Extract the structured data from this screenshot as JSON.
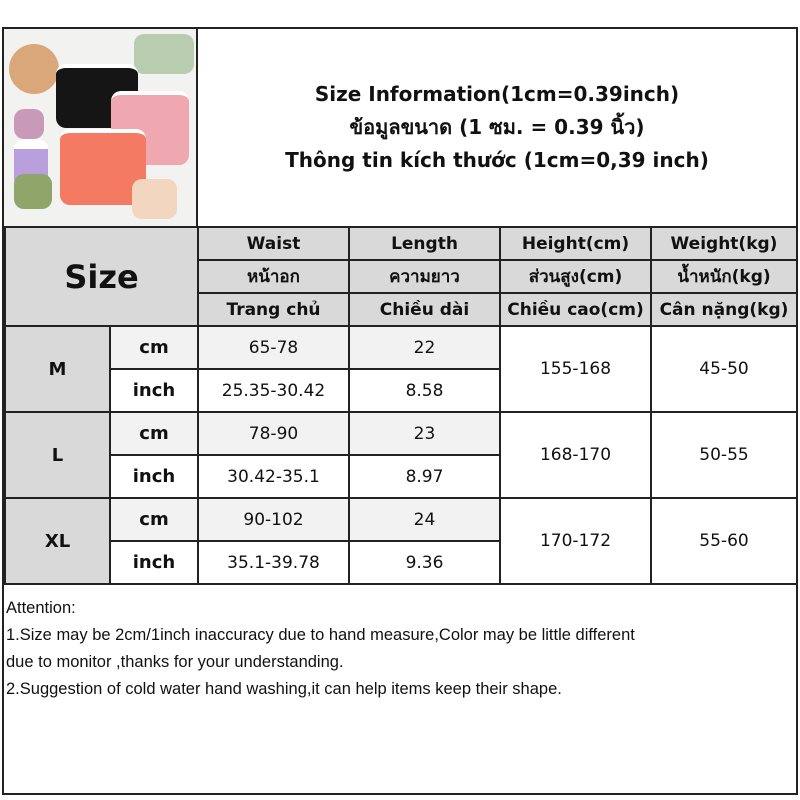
{
  "title": {
    "line1": "Size Information(1cm=0.39inch)",
    "line2": "ข้อมูลขนาด (1 ซม. = 0.39 นิ้ว)",
    "line3": "Thông tin kích thước (1cm=0,39 inch)"
  },
  "header": {
    "size": "Size",
    "columns": [
      {
        "en": "Waist",
        "th": "หน้าอก",
        "vi": "Trang chủ"
      },
      {
        "en": "Length",
        "th": "ความยาว",
        "vi": "Chiều dài"
      },
      {
        "en": "Height(cm)",
        "th": "ส่วนสูง(cm)",
        "vi": "Chiều cao(cm)"
      },
      {
        "en": "Weight(kg)",
        "th": "น้ำหนัก(kg)",
        "vi": "Cân nặng(kg)"
      }
    ]
  },
  "rows": [
    {
      "size": "M",
      "cm": {
        "unit": "cm",
        "waist": "65-78",
        "length": "22"
      },
      "inch": {
        "unit": "inch",
        "waist": "25.35-30.42",
        "length": "8.58"
      },
      "height": "155-168",
      "weight": "45-50"
    },
    {
      "size": "L",
      "cm": {
        "unit": "cm",
        "waist": "78-90",
        "length": "23"
      },
      "inch": {
        "unit": "inch",
        "waist": "30.42-35.1",
        "length": "8.97"
      },
      "height": "168-170",
      "weight": "50-55"
    },
    {
      "size": "XL",
      "cm": {
        "unit": "cm",
        "waist": "90-102",
        "length": "24"
      },
      "inch": {
        "unit": "inch",
        "waist": "35.1-39.78",
        "length": "9.36"
      },
      "height": "170-172",
      "weight": "55-60"
    }
  ],
  "attention": {
    "heading": "Attention:",
    "line1": "1.Size may be 2cm/1inch inaccuracy due to hand measure,Color may be little different",
    "line1b": "due to monitor ,thanks for your understanding.",
    "line2": "2.Suggestion of cold water hand washing,it can help items keep their shape."
  },
  "colors": {
    "header_bg": "#d9d9d9",
    "cm_row_bg": "#f2f2f2"
  }
}
